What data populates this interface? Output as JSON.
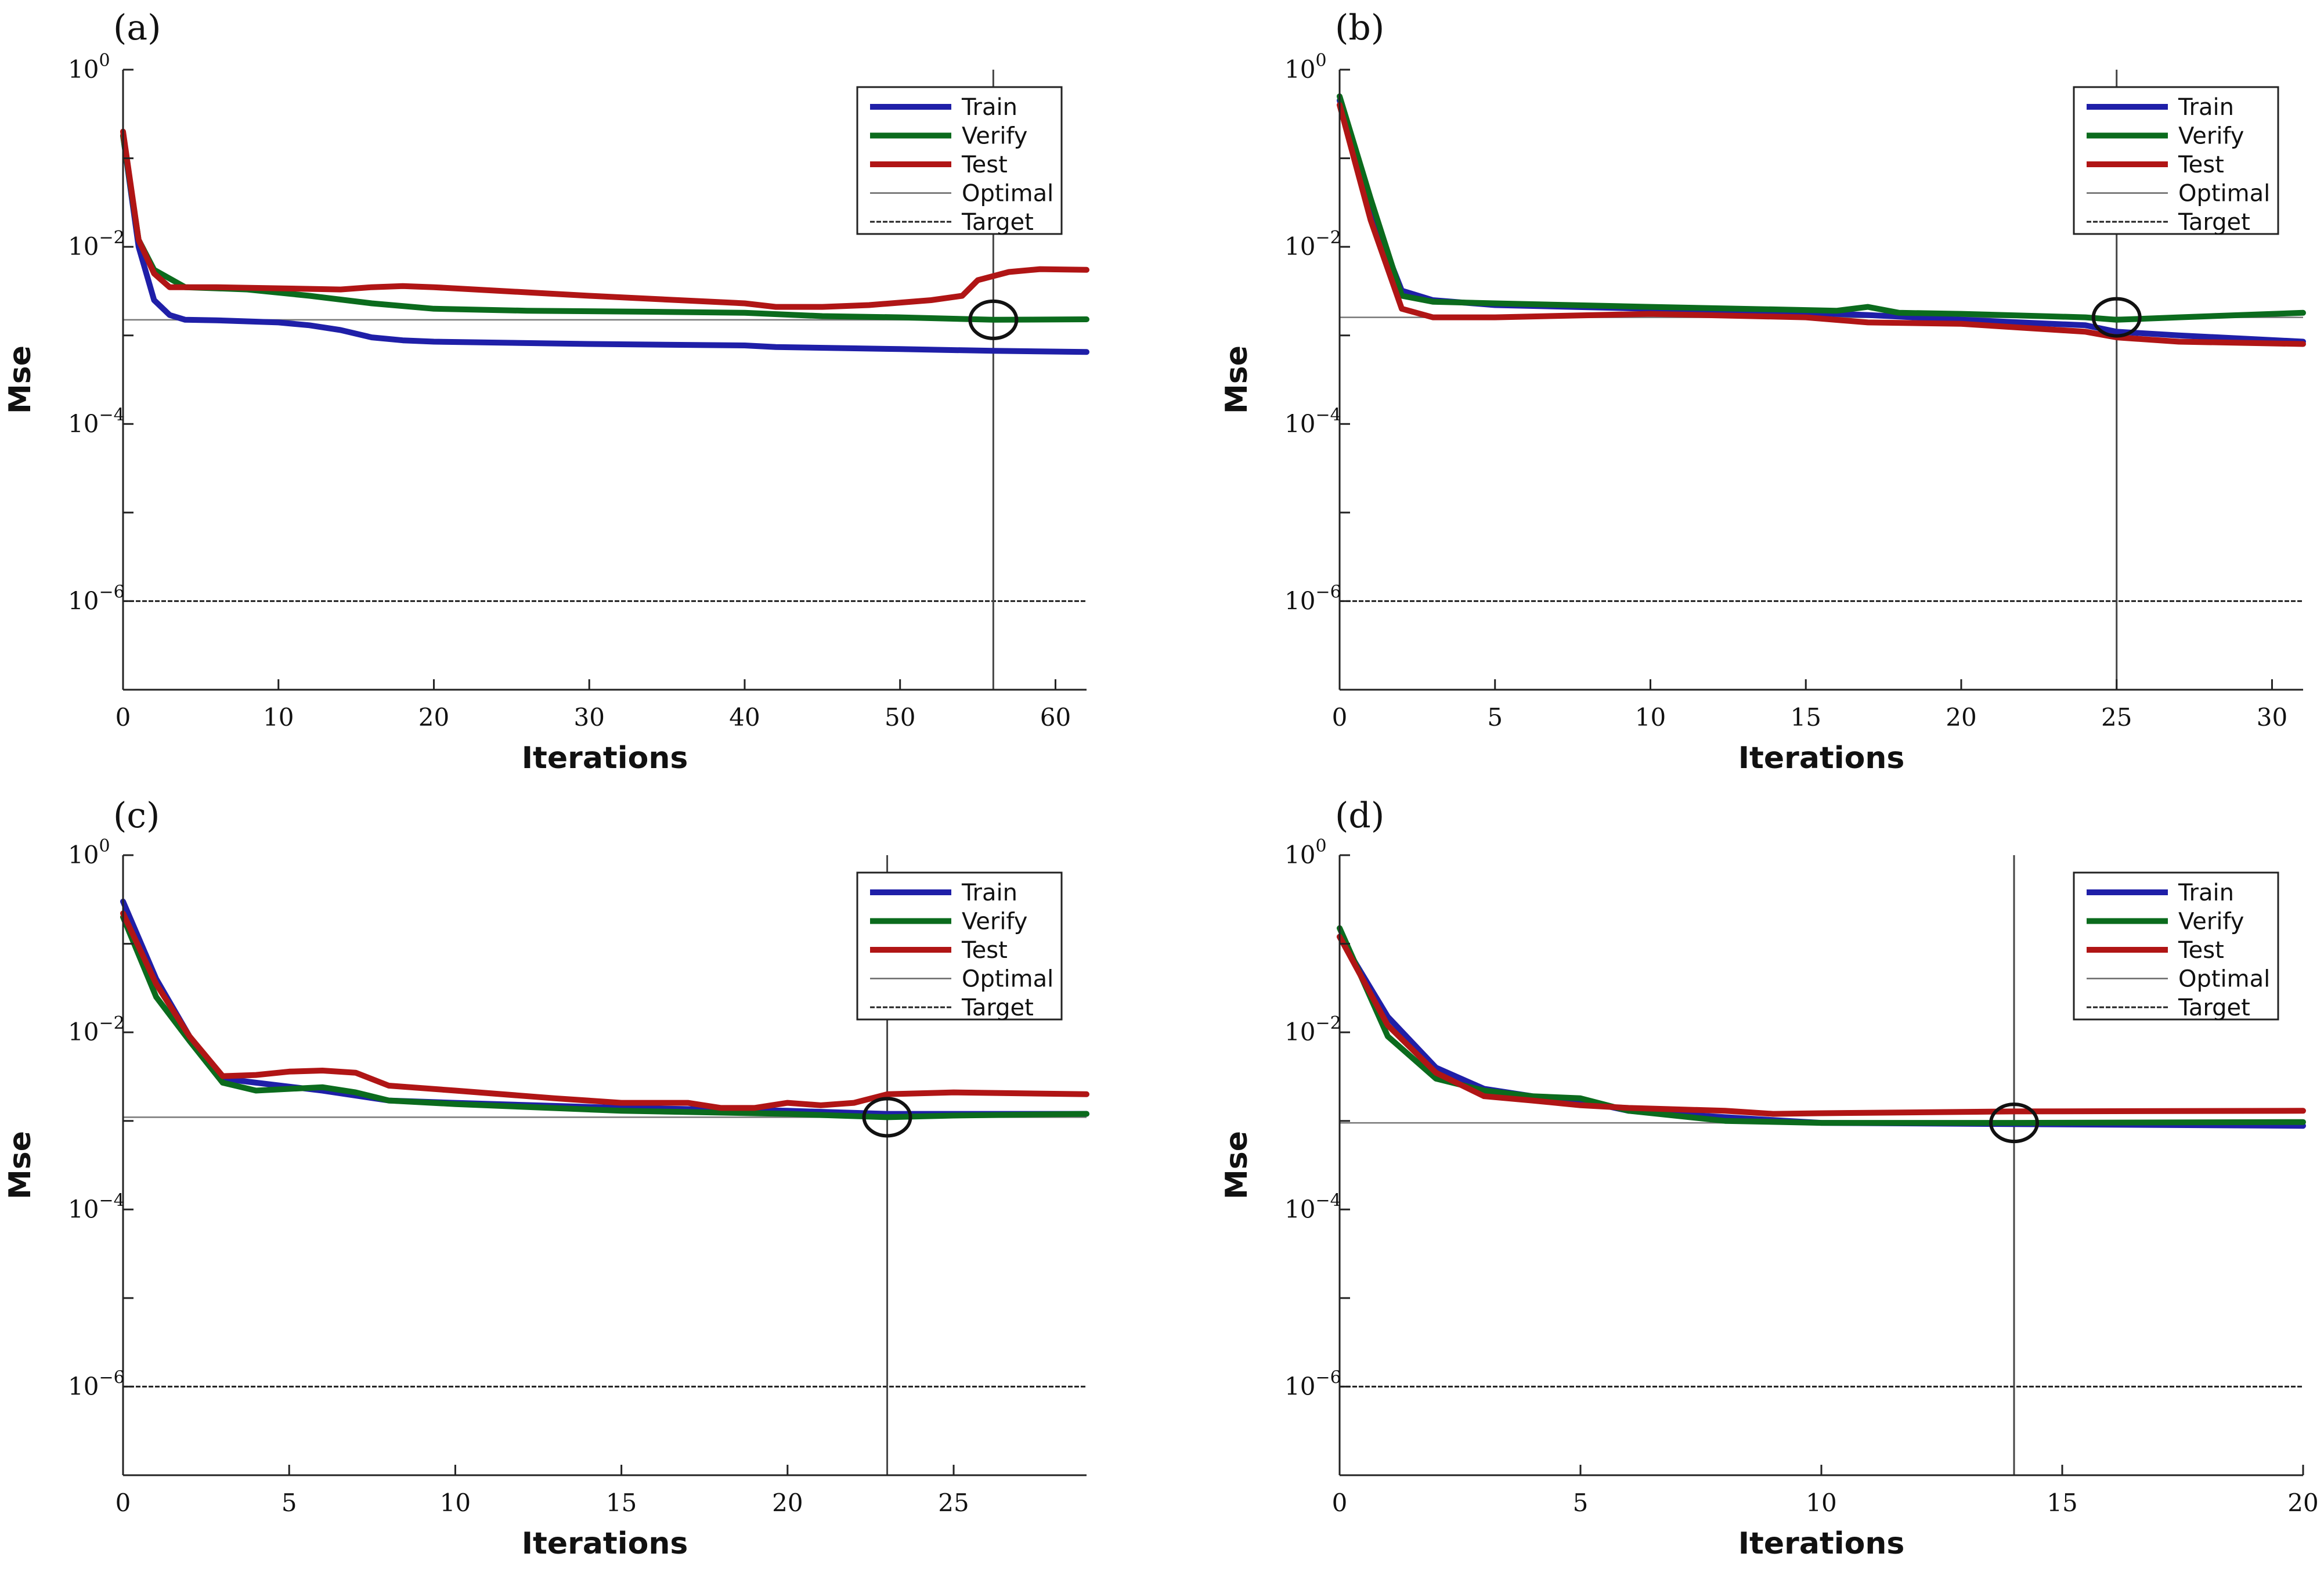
{
  "chart_data": [
    {
      "type": "line",
      "panel_label": "(a)",
      "xlabel": "Iterations",
      "ylabel": "Mse",
      "yscale": "log",
      "xlim": [
        0,
        62
      ],
      "ylim_exp": [
        -7,
        0
      ],
      "xticks": [
        0,
        10,
        20,
        30,
        40,
        50,
        60
      ],
      "xtick_labels": [
        "0",
        "10",
        "20",
        "30",
        "40",
        "50",
        "60"
      ],
      "ytick_exps": [
        0,
        -2,
        -4,
        -6
      ],
      "ytick_base": "10",
      "ytick_exp_labels": [
        "0",
        "−2",
        "−4",
        "−6"
      ],
      "optimal_y": 0.0015,
      "target_y": 1e-06,
      "best_iteration": 56,
      "legend": [
        "Train",
        "Verify",
        "Test",
        "Optimal",
        "Target"
      ],
      "series": [
        {
          "name": "Train",
          "color": "#1f1fa8",
          "points": [
            [
              0,
              0.18
            ],
            [
              1,
              0.01
            ],
            [
              2,
              0.0025
            ],
            [
              3,
              0.0017
            ],
            [
              4,
              0.0015
            ],
            [
              6,
              0.00148
            ],
            [
              10,
              0.0014
            ],
            [
              12,
              0.0013
            ],
            [
              14,
              0.00115
            ],
            [
              16,
              0.00095
            ],
            [
              18,
              0.00088
            ],
            [
              20,
              0.00085
            ],
            [
              30,
              0.0008
            ],
            [
              40,
              0.00077
            ],
            [
              42,
              0.00074
            ],
            [
              50,
              0.0007
            ],
            [
              56,
              0.00067
            ],
            [
              62,
              0.00065
            ]
          ]
        },
        {
          "name": "Verify",
          "color": "#0b6b1d",
          "points": [
            [
              0,
              0.18
            ],
            [
              1,
              0.012
            ],
            [
              2,
              0.0055
            ],
            [
              4,
              0.0035
            ],
            [
              6,
              0.0034
            ],
            [
              8,
              0.0033
            ],
            [
              12,
              0.0028
            ],
            [
              16,
              0.0023
            ],
            [
              20,
              0.002
            ],
            [
              26,
              0.0019
            ],
            [
              34,
              0.00185
            ],
            [
              40,
              0.0018
            ],
            [
              45,
              0.00165
            ],
            [
              50,
              0.0016
            ],
            [
              56,
              0.0015
            ],
            [
              62,
              0.00152
            ]
          ]
        },
        {
          "name": "Test",
          "color": "#b01515",
          "points": [
            [
              0,
              0.2
            ],
            [
              1,
              0.012
            ],
            [
              2,
              0.005
            ],
            [
              3,
              0.0035
            ],
            [
              6,
              0.0035
            ],
            [
              10,
              0.0034
            ],
            [
              14,
              0.0033
            ],
            [
              16,
              0.0035
            ],
            [
              18,
              0.0036
            ],
            [
              20,
              0.0035
            ],
            [
              30,
              0.0028
            ],
            [
              40,
              0.0023
            ],
            [
              42,
              0.0021
            ],
            [
              45,
              0.0021
            ],
            [
              48,
              0.0022
            ],
            [
              52,
              0.0025
            ],
            [
              54,
              0.0028
            ],
            [
              55,
              0.0042
            ],
            [
              57,
              0.0052
            ],
            [
              59,
              0.0056
            ],
            [
              62,
              0.0055
            ]
          ]
        }
      ]
    },
    {
      "type": "line",
      "panel_label": "(b)",
      "xlabel": "Iterations",
      "ylabel": "Mse",
      "yscale": "log",
      "xlim": [
        0,
        31
      ],
      "ylim_exp": [
        -7,
        0
      ],
      "xticks": [
        0,
        5,
        10,
        15,
        20,
        25,
        30
      ],
      "xtick_labels": [
        "0",
        "5",
        "10",
        "15",
        "20",
        "25",
        "30"
      ],
      "ytick_exps": [
        0,
        -2,
        -4,
        -6
      ],
      "ytick_base": "10",
      "ytick_exp_labels": [
        "0",
        "−2",
        "−4",
        "−6"
      ],
      "optimal_y": 0.0016,
      "target_y": 1e-06,
      "best_iteration": 25,
      "legend": [
        "Train",
        "Verify",
        "Test",
        "Optimal",
        "Target"
      ],
      "series": [
        {
          "name": "Train",
          "color": "#1f1fa8",
          "points": [
            [
              0,
              0.45
            ],
            [
              1,
              0.025
            ],
            [
              2,
              0.0032
            ],
            [
              3,
              0.0025
            ],
            [
              5,
              0.0022
            ],
            [
              10,
              0.002
            ],
            [
              15,
              0.0018
            ],
            [
              17,
              0.0017
            ],
            [
              20,
              0.0015
            ],
            [
              24,
              0.0013
            ],
            [
              25,
              0.0011
            ],
            [
              27,
              0.001
            ],
            [
              31,
              0.00085
            ]
          ]
        },
        {
          "name": "Verify",
          "color": "#0b6b1d",
          "points": [
            [
              0,
              0.5
            ],
            [
              1,
              0.035
            ],
            [
              2,
              0.0028
            ],
            [
              3,
              0.0024
            ],
            [
              5,
              0.0023
            ],
            [
              10,
              0.0021
            ],
            [
              16,
              0.0019
            ],
            [
              17,
              0.0021
            ],
            [
              18,
              0.0018
            ],
            [
              20,
              0.00175
            ],
            [
              24,
              0.0016
            ],
            [
              25,
              0.0015
            ],
            [
              27,
              0.0016
            ],
            [
              31,
              0.0018
            ]
          ]
        },
        {
          "name": "Test",
          "color": "#b01515",
          "points": [
            [
              0,
              0.4
            ],
            [
              1,
              0.02
            ],
            [
              2,
              0.002
            ],
            [
              3,
              0.0016
            ],
            [
              5,
              0.0016
            ],
            [
              10,
              0.00175
            ],
            [
              15,
              0.0016
            ],
            [
              17,
              0.0014
            ],
            [
              20,
              0.00135
            ],
            [
              24,
              0.0011
            ],
            [
              25,
              0.00095
            ],
            [
              27,
              0.00085
            ],
            [
              31,
              0.0008
            ]
          ]
        }
      ]
    },
    {
      "type": "line",
      "panel_label": "(c)",
      "xlabel": "Iterations",
      "ylabel": "Mse",
      "yscale": "log",
      "xlim": [
        0,
        29
      ],
      "ylim_exp": [
        -7,
        0
      ],
      "xticks": [
        0,
        5,
        10,
        15,
        20,
        25
      ],
      "xtick_labels": [
        "0",
        "5",
        "10",
        "15",
        "20",
        "25"
      ],
      "ytick_exps": [
        0,
        -2,
        -4,
        -6
      ],
      "ytick_base": "10",
      "ytick_exp_labels": [
        "0",
        "−2",
        "−4",
        "−6"
      ],
      "optimal_y": 0.0011,
      "target_y": 1e-06,
      "best_iteration": 23,
      "legend": [
        "Train",
        "Verify",
        "Test",
        "Optimal",
        "Target"
      ],
      "series": [
        {
          "name": "Train",
          "color": "#1f1fa8",
          "points": [
            [
              0,
              0.3
            ],
            [
              1,
              0.04
            ],
            [
              2,
              0.009
            ],
            [
              3,
              0.003
            ],
            [
              4,
              0.0027
            ],
            [
              6,
              0.0022
            ],
            [
              8,
              0.0017
            ],
            [
              10,
              0.0016
            ],
            [
              15,
              0.0014
            ],
            [
              20,
              0.0013
            ],
            [
              23,
              0.0012
            ],
            [
              25,
              0.0012
            ],
            [
              29,
              0.0012
            ]
          ]
        },
        {
          "name": "Verify",
          "color": "#0b6b1d",
          "points": [
            [
              0,
              0.2
            ],
            [
              1,
              0.025
            ],
            [
              2,
              0.008
            ],
            [
              3,
              0.0027
            ],
            [
              4,
              0.0022
            ],
            [
              6,
              0.0024
            ],
            [
              7,
              0.0021
            ],
            [
              8,
              0.0017
            ],
            [
              10,
              0.00155
            ],
            [
              15,
              0.0013
            ],
            [
              20,
              0.0012
            ],
            [
              23,
              0.0011
            ],
            [
              25,
              0.00115
            ],
            [
              29,
              0.0012
            ]
          ]
        },
        {
          "name": "Test",
          "color": "#b01515",
          "points": [
            [
              0,
              0.22
            ],
            [
              1,
              0.035
            ],
            [
              2,
              0.009
            ],
            [
              3,
              0.0032
            ],
            [
              4,
              0.0033
            ],
            [
              5,
              0.0036
            ],
            [
              6,
              0.0037
            ],
            [
              7,
              0.0035
            ],
            [
              8,
              0.0025
            ],
            [
              10,
              0.0022
            ],
            [
              13,
              0.0018
            ],
            [
              15,
              0.0016
            ],
            [
              17,
              0.0016
            ],
            [
              18,
              0.0014
            ],
            [
              19,
              0.0014
            ],
            [
              20,
              0.0016
            ],
            [
              21,
              0.0015
            ],
            [
              22,
              0.0016
            ],
            [
              23,
              0.002
            ],
            [
              25,
              0.0021
            ],
            [
              29,
              0.002
            ]
          ]
        }
      ]
    },
    {
      "type": "line",
      "panel_label": "(d)",
      "xlabel": "Iterations",
      "ylabel": "Mse",
      "yscale": "log",
      "xlim": [
        0,
        20
      ],
      "ylim_exp": [
        -7,
        0
      ],
      "xticks": [
        0,
        5,
        10,
        15,
        20
      ],
      "xtick_labels": [
        "0",
        "5",
        "10",
        "15",
        "20"
      ],
      "ytick_exps": [
        0,
        -2,
        -4,
        -6
      ],
      "ytick_base": "10",
      "ytick_exp_labels": [
        "0",
        "−2",
        "−4",
        "−6"
      ],
      "optimal_y": 0.00095,
      "target_y": 1e-06,
      "best_iteration": 14,
      "legend": [
        "Train",
        "Verify",
        "Test",
        "Optimal",
        "Target"
      ],
      "series": [
        {
          "name": "Train",
          "color": "#1f1fa8",
          "points": [
            [
              0,
              0.12
            ],
            [
              1,
              0.015
            ],
            [
              2,
              0.004
            ],
            [
              3,
              0.0023
            ],
            [
              4,
              0.0019
            ],
            [
              5,
              0.0017
            ],
            [
              6,
              0.0013
            ],
            [
              8,
              0.0011
            ],
            [
              10,
              0.00095
            ],
            [
              14,
              0.00092
            ],
            [
              20,
              0.00088
            ]
          ]
        },
        {
          "name": "Verify",
          "color": "#0b6b1d",
          "points": [
            [
              0,
              0.15
            ],
            [
              1,
              0.009
            ],
            [
              2,
              0.003
            ],
            [
              3,
              0.0022
            ],
            [
              4,
              0.0019
            ],
            [
              5,
              0.0018
            ],
            [
              6,
              0.0013
            ],
            [
              8,
              0.001
            ],
            [
              10,
              0.00095
            ],
            [
              14,
              0.00095
            ],
            [
              20,
              0.00097
            ]
          ]
        },
        {
          "name": "Test",
          "color": "#b01515",
          "points": [
            [
              0,
              0.12
            ],
            [
              1,
              0.012
            ],
            [
              2,
              0.0035
            ],
            [
              3,
              0.0019
            ],
            [
              4,
              0.0017
            ],
            [
              5,
              0.0015
            ],
            [
              6,
              0.0014
            ],
            [
              8,
              0.0013
            ],
            [
              9,
              0.0012
            ],
            [
              10,
              0.00122
            ],
            [
              14,
              0.00128
            ],
            [
              20,
              0.0013
            ]
          ]
        }
      ]
    }
  ]
}
